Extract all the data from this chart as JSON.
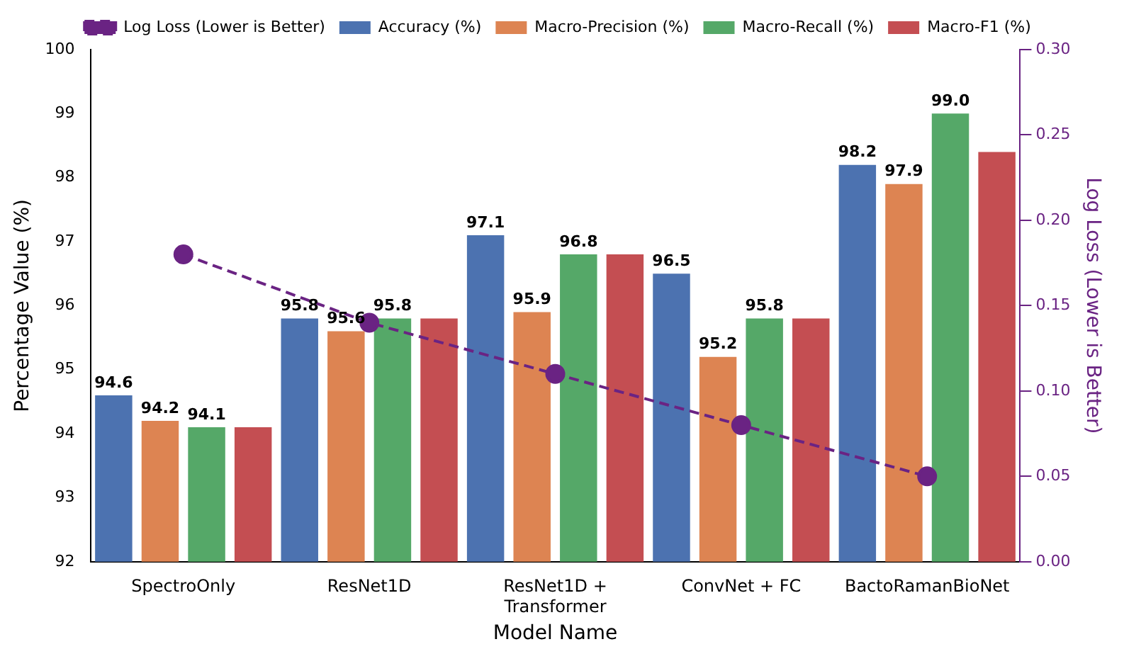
{
  "chart_data": {
    "type": "bar",
    "categories": [
      "SpectroOnly",
      "ResNet1D",
      "ResNet1D +\nTransformer",
      "ConvNet + FC",
      "BactoRamanBioNet"
    ],
    "xlabel": "Model Name",
    "ylabel": "Percentage Value (%)",
    "y2label": "Log Loss (Lower is Better)",
    "series": [
      {
        "name": "Accuracy (%)",
        "color": "#4c72b0",
        "values": [
          94.6,
          95.8,
          97.1,
          96.5,
          98.2
        ],
        "value_labels": [
          "94.6",
          "95.8",
          "97.1",
          "96.5",
          "98.2"
        ]
      },
      {
        "name": "Macro-Precision (%)",
        "color": "#dd8452",
        "values": [
          94.2,
          95.6,
          95.9,
          95.2,
          97.9
        ],
        "value_labels": [
          "94.2",
          "95.6",
          "95.9",
          "95.2",
          "97.9"
        ]
      },
      {
        "name": "Macro-Recall (%)",
        "color": "#55a868",
        "values": [
          94.1,
          95.8,
          96.8,
          95.8,
          99.0
        ],
        "value_labels": [
          "94.1",
          "95.8",
          "96.8",
          "95.8",
          "99.0"
        ]
      },
      {
        "name": "Macro-F1 (%)",
        "color": "#c44e52",
        "values": [
          94.1,
          95.8,
          96.8,
          95.8,
          98.4
        ]
      },
      {
        "name": "Log Loss (Lower is Better)",
        "type": "line",
        "axis": "y2",
        "color": "#6a2383",
        "values": [
          0.18,
          0.14,
          0.11,
          0.08,
          0.05
        ],
        "marker": "circle",
        "line_style": "dashed"
      }
    ],
    "ylim": [
      92,
      100
    ],
    "yticks": [
      92,
      93,
      94,
      95,
      96,
      97,
      98,
      99,
      100
    ],
    "y2lim": [
      0,
      0.3
    ],
    "y2ticks": [
      {
        "value": 0,
        "label": "0.00"
      },
      {
        "value": 0.05,
        "label": "0.05"
      },
      {
        "value": 0.1,
        "label": "0.10"
      },
      {
        "value": 0.15,
        "label": "0.15"
      },
      {
        "value": 0.2,
        "label": "0.20"
      },
      {
        "value": 0.25,
        "label": "0.25"
      },
      {
        "value": 0.3,
        "label": "0.30"
      }
    ],
    "legend": "top",
    "grid": false
  }
}
